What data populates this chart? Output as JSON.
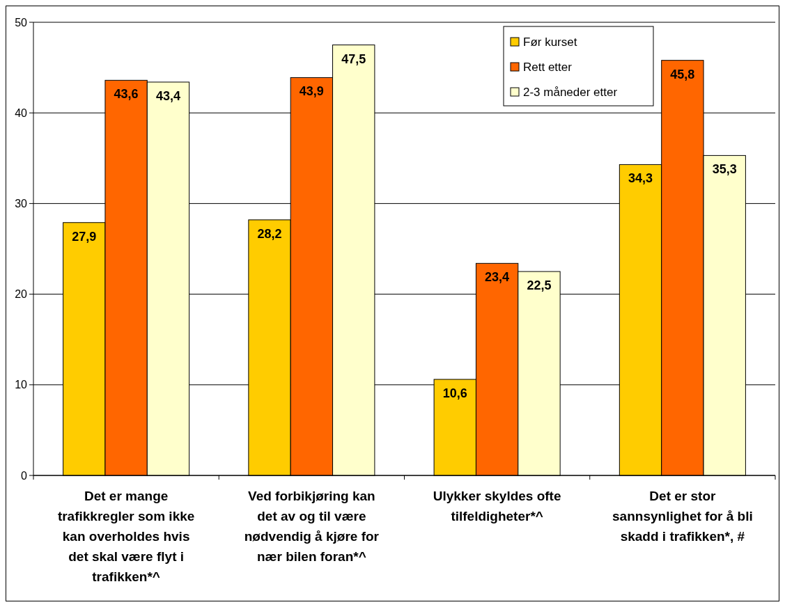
{
  "chart_data": {
    "type": "bar",
    "categories": [
      "Det er mange trafikkregler som ikke kan overholdes hvis det skal være flyt i trafikken*^",
      "Ved forbikjøring kan det av og til være nødvendig å kjøre for nær bilen foran*^",
      "Ulykker skyldes ofte tilfeldigheter*^",
      "Det er stor sannsynlighet for å bli skadd i trafikken*, #"
    ],
    "series": [
      {
        "name": "Før kurset",
        "color": "#ffcc00",
        "values": [
          27.9,
          28.2,
          10.6,
          34.3
        ]
      },
      {
        "name": "Rett etter",
        "color": "#ff6600",
        "values": [
          43.6,
          43.9,
          23.4,
          45.8
        ]
      },
      {
        "name": "2-3 måneder etter",
        "color": "#ffffcc",
        "values": [
          43.4,
          47.5,
          22.5,
          35.3
        ]
      }
    ],
    "value_labels": [
      [
        "27,9",
        "28,2",
        "10,6",
        "34,3"
      ],
      [
        "43,6",
        "43,9",
        "23,4",
        "45,8"
      ],
      [
        "43,4",
        "47,5",
        "22,5",
        "35,3"
      ]
    ],
    "ylim": [
      0,
      50
    ],
    "yticks": [
      0,
      10,
      20,
      30,
      40,
      50
    ],
    "grid": "y",
    "legend": "top right"
  }
}
